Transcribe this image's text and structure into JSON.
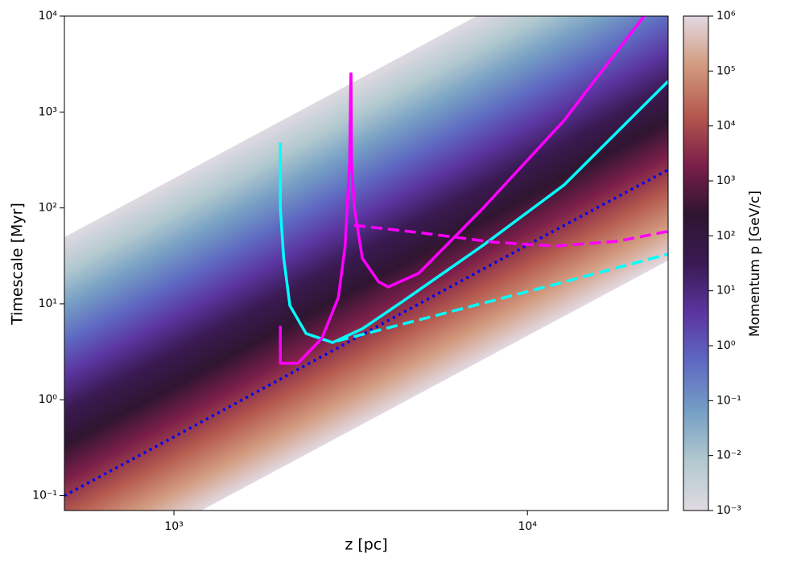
{
  "chart_data": {
    "type": "line",
    "xlabel": "z [pc]",
    "ylabel": "Timescale [Myr]",
    "xscale": "log",
    "yscale": "log",
    "xlim": [
      490,
      25000
    ],
    "ylim": [
      0.07,
      10000
    ],
    "xticks": [
      {
        "value": 1000,
        "label": "10³"
      },
      {
        "value": 10000,
        "label": "10⁴"
      }
    ],
    "yticks": [
      {
        "value": 0.1,
        "label": "10⁻¹"
      },
      {
        "value": 1,
        "label": "10⁰"
      },
      {
        "value": 10,
        "label": "10¹"
      },
      {
        "value": 100,
        "label": "10²"
      },
      {
        "value": 1000,
        "label": "10³"
      },
      {
        "value": 10000,
        "label": "10⁴"
      }
    ],
    "series": [
      {
        "color": "#0000ff",
        "linestyle": "dotted",
        "x": [
          490,
          1000,
          3000,
          10000,
          25000
        ],
        "values": [
          0.1,
          0.41,
          3.7,
          41,
          250
        ]
      },
      {
        "color": "#00ffff",
        "linestyle": "solid",
        "x": [
          2000,
          2000,
          2043,
          2128,
          2365,
          2812,
          3413,
          4436,
          7499,
          12680,
          25000
        ],
        "values": [
          480,
          100,
          30.6,
          9.6,
          4.9,
          3.95,
          5.5,
          10.6,
          40.9,
          173,
          2094
        ]
      },
      {
        "color": "#00ffff",
        "linestyle": "dashed",
        "x": [
          2900,
          6000,
          12000,
          25000
        ],
        "values": [
          4.1,
          8.2,
          16,
          33
        ]
      },
      {
        "color": "#ff00ff",
        "linestyle": "solid",
        "x": [
          2000,
          2000,
          2244,
          2624,
          2917,
          3050,
          3140,
          3165,
          3170,
          3180,
          3240,
          3410,
          3790,
          4040,
          4925,
          7499,
          12680,
          21380
        ],
        "values": [
          5.9,
          2.4,
          2.4,
          4.4,
          11.6,
          40,
          300,
          2500,
          2500,
          300,
          100,
          30,
          17,
          15,
          20.8,
          100,
          813,
          10000
        ]
      },
      {
        "color": "#ff00ff",
        "linestyle": "dashed",
        "x": [
          3236,
          5000,
          8000,
          12000,
          18000,
          25000
        ],
        "values": [
          66,
          55,
          44,
          40,
          45,
          57
        ]
      }
    ],
    "colorbar": {
      "label": "Momentum p [GeV/c]",
      "scale": "log",
      "lim": [
        0.001,
        1000000
      ],
      "ticks": [
        {
          "value": 0.001,
          "label": "10⁻³"
        },
        {
          "value": 0.01,
          "label": "10⁻²"
        },
        {
          "value": 0.1,
          "label": "10⁻¹"
        },
        {
          "value": 1,
          "label": "10⁰"
        },
        {
          "value": 10,
          "label": "10¹"
        },
        {
          "value": 100,
          "label": "10²"
        },
        {
          "value": 1000,
          "label": "10³"
        },
        {
          "value": 10000,
          "label": "10⁴"
        },
        {
          "value": 100000,
          "label": "10⁵"
        },
        {
          "value": 1000000,
          "label": "10⁶"
        }
      ],
      "colormap": [
        "#e0dae2",
        "#b2c9cf",
        "#759fc4",
        "#5f6ac2",
        "#5b35a0",
        "#3a1a52",
        "#2f1530",
        "#7c1f4a",
        "#b4594e",
        "#d29a7e",
        "#e2d9e2"
      ]
    }
  }
}
